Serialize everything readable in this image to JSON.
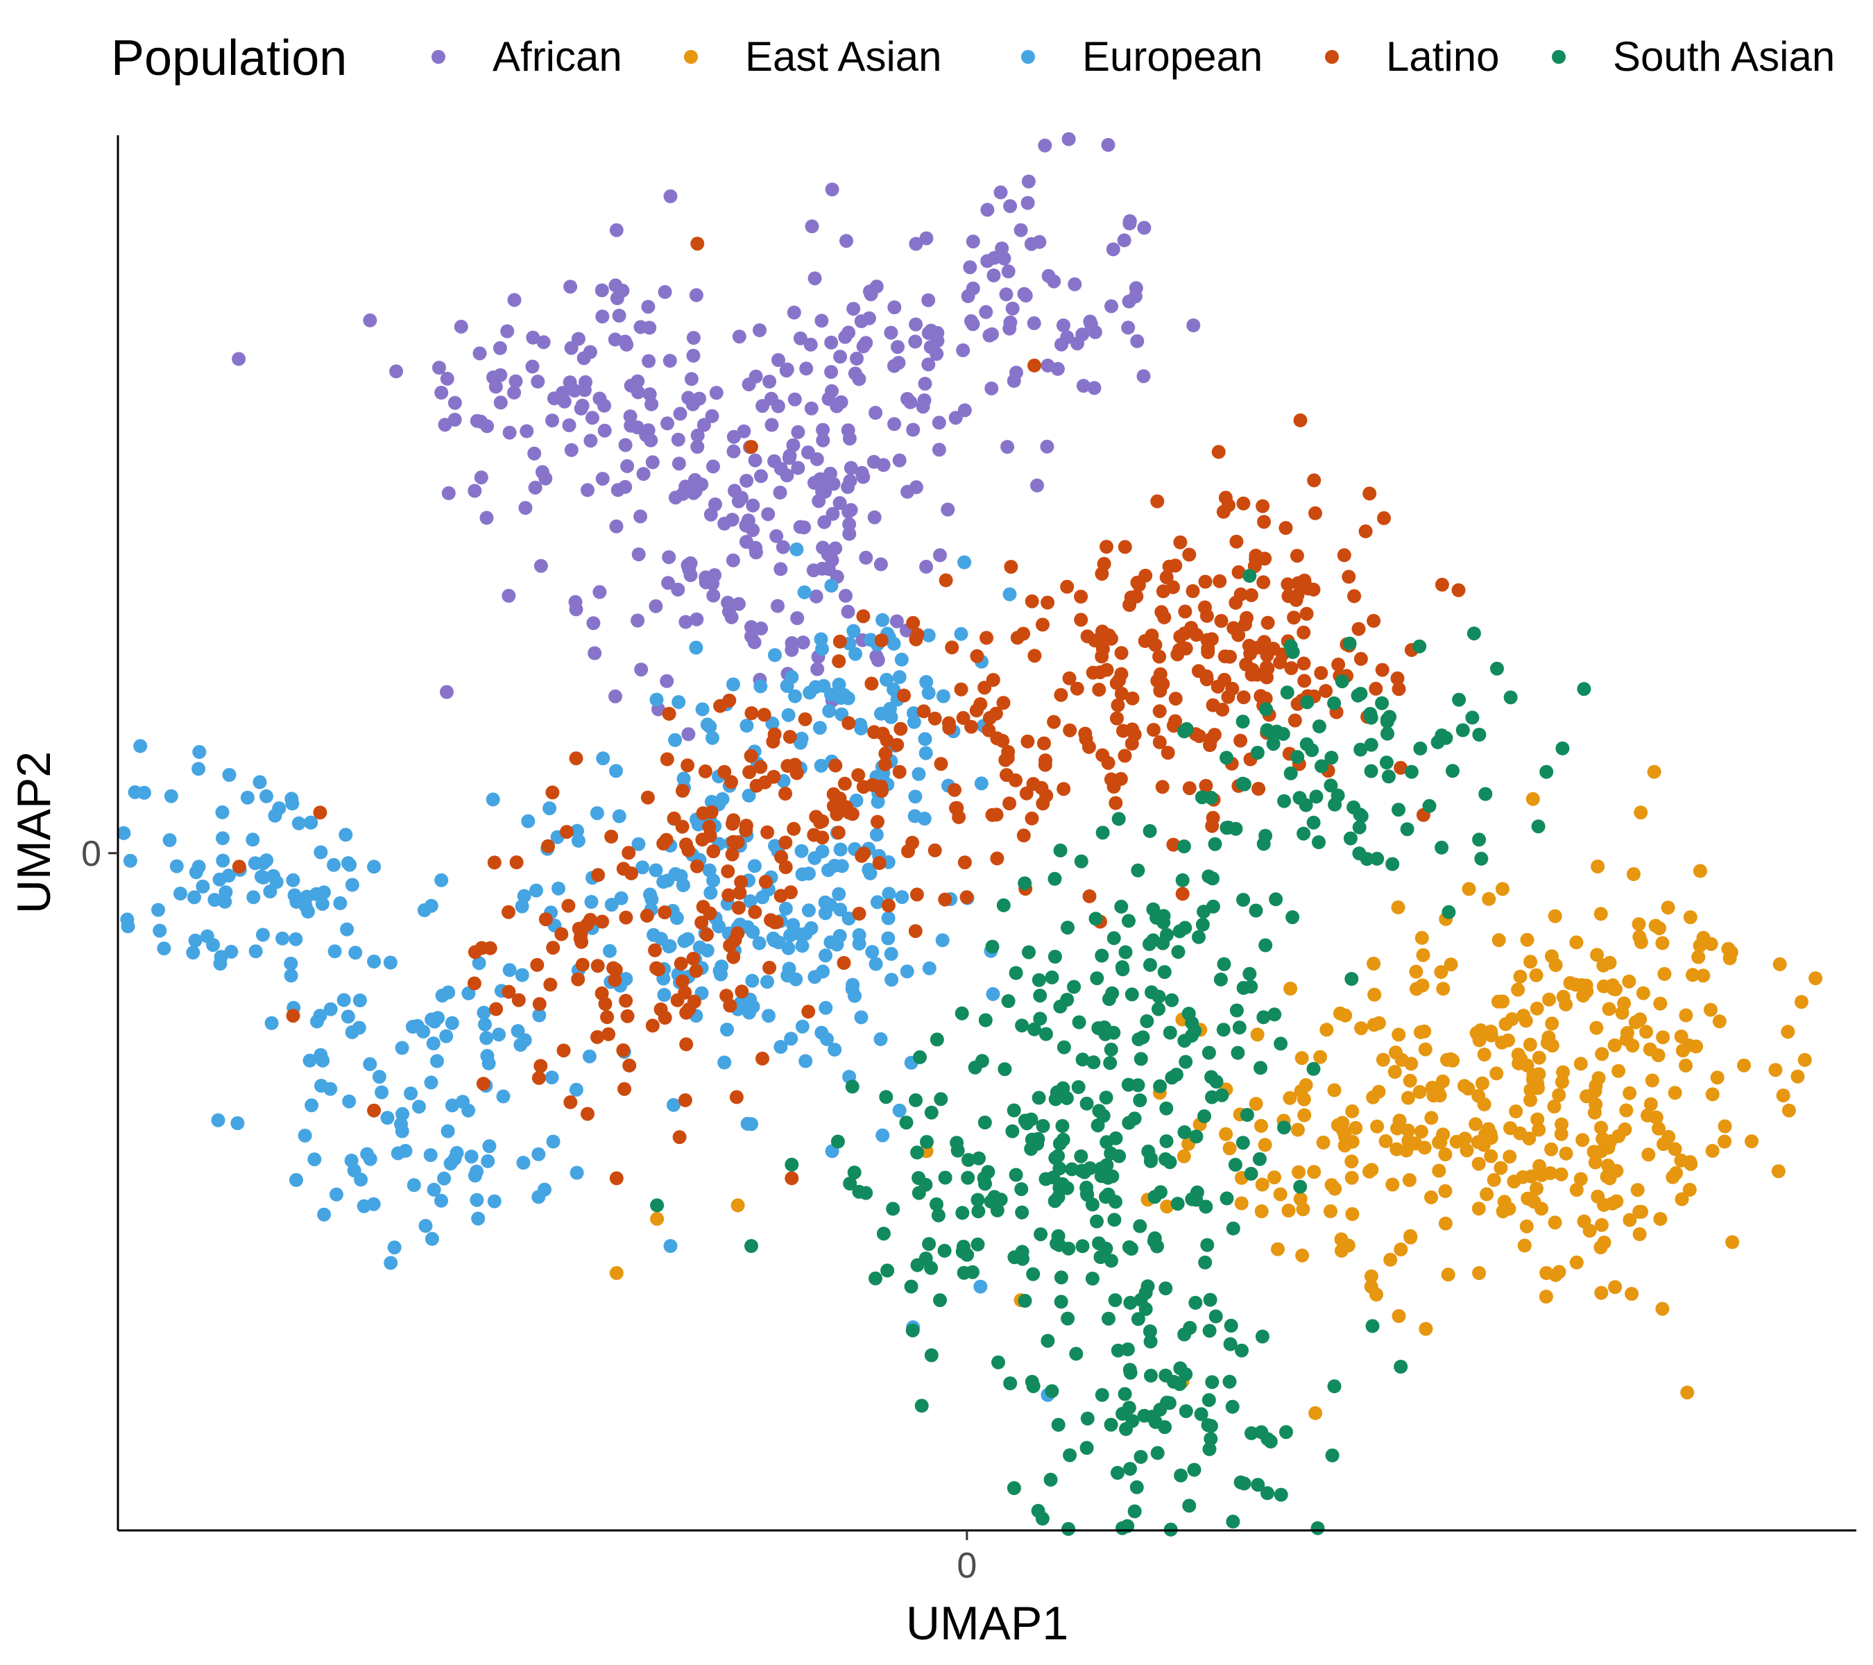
{
  "chart_data": {
    "type": "scatter",
    "title": "",
    "xlabel": "UMAP1",
    "ylabel": "UMAP2",
    "xlim": [
      -6.3,
      6.6
    ],
    "ylim": [
      -5.0,
      5.3
    ],
    "x_ticks": [
      {
        "value": 0,
        "label": "0"
      }
    ],
    "y_ticks": [
      {
        "value": 0,
        "label": "0"
      }
    ],
    "grid": false,
    "legend": {
      "title": "Population",
      "position": "top",
      "entries": [
        "African",
        "East Asian",
        "European",
        "Latino",
        "South Asian"
      ]
    },
    "series": [
      {
        "name": "African",
        "color": "#8774CA",
        "cluster_centers": [
          [
            -1.2,
            3.1
          ],
          [
            -2.9,
            3.4
          ],
          [
            0.2,
            4.0
          ],
          [
            -1.6,
            2.1
          ]
        ],
        "points": [
          [
            -2.6,
            4.6
          ],
          [
            -2.2,
            4.85
          ],
          [
            -1.0,
            4.9
          ],
          [
            0.4,
            4.6
          ],
          [
            -3.9,
            3.4
          ],
          [
            -3.8,
            3.2
          ],
          [
            -2.0,
            3.0
          ],
          [
            -1.4,
            3.3
          ],
          [
            -0.8,
            3.5
          ],
          [
            -0.5,
            2.9
          ],
          [
            -1.1,
            2.6
          ],
          [
            -1.9,
            2.5
          ],
          [
            -2.4,
            2.8
          ],
          [
            0.3,
            3.0
          ],
          [
            0.6,
            3.6
          ],
          [
            0.8,
            4.2
          ],
          [
            -0.2,
            2.2
          ],
          [
            -1.6,
            1.6
          ],
          [
            -3.4,
            1.9
          ],
          [
            -2.9,
            1.8
          ],
          [
            -0.9,
            1.9
          ],
          [
            -1.3,
            1.5
          ]
        ]
      },
      {
        "name": "East Asian",
        "color": "#E6960F",
        "cluster_centers": [
          [
            3.8,
            -1.6
          ],
          [
            5.0,
            -1.2
          ],
          [
            2.9,
            -2.1
          ],
          [
            4.5,
            -2.4
          ]
        ],
        "points": [
          [
            4.2,
            0.4
          ],
          [
            5.0,
            0.3
          ],
          [
            5.1,
            0.6
          ],
          [
            6.0,
            -1.6
          ],
          [
            6.1,
            -1.9
          ],
          [
            3.2,
            -0.4
          ],
          [
            2.4,
            -1.0
          ],
          [
            4.3,
            -3.1
          ],
          [
            3.8,
            -3.1
          ],
          [
            -2.6,
            -3.1
          ],
          [
            -2.3,
            -2.7
          ],
          [
            -1.7,
            -2.6
          ],
          [
            -0.3,
            -2.2
          ],
          [
            1.6,
            -3.9
          ],
          [
            0.4,
            -3.3
          ],
          [
            3.0,
            -3.2
          ]
        ]
      },
      {
        "name": "European",
        "color": "#45A4E2",
        "cluster_centers": [
          [
            -1.2,
            -0.7
          ],
          [
            -2.1,
            -0.3
          ],
          [
            -5.4,
            -0.3
          ],
          [
            -3.9,
            -1.9
          ],
          [
            -0.9,
            1.1
          ]
        ],
        "points": [
          [
            -5.7,
            -0.1
          ],
          [
            -5.3,
            0.1
          ],
          [
            -5.0,
            -0.2
          ],
          [
            -4.4,
            -0.1
          ],
          [
            -3.9,
            -0.2
          ],
          [
            -4.4,
            -0.8
          ],
          [
            -4.8,
            -1.2
          ],
          [
            -4.2,
            -2.0
          ],
          [
            -3.7,
            -1.9
          ],
          [
            -3.3,
            -0.9
          ],
          [
            -2.8,
            -1.5
          ],
          [
            -2.2,
            -2.9
          ],
          [
            -1.6,
            -2.0
          ],
          [
            -1.0,
            -2.2
          ],
          [
            -0.5,
            -1.9
          ],
          [
            -0.1,
            0.9
          ],
          [
            -0.5,
            1.3
          ],
          [
            -1.3,
            1.3
          ],
          [
            -2.7,
            0.7
          ],
          [
            0.6,
            -4.0
          ],
          [
            -0.4,
            -3.5
          ],
          [
            0.1,
            -3.2
          ]
        ]
      },
      {
        "name": "Latino",
        "color": "#CC4A0E",
        "cluster_centers": [
          [
            0.5,
            0.9
          ],
          [
            1.8,
            1.3
          ],
          [
            2.1,
            1.8
          ],
          [
            -1.3,
            0.3
          ],
          [
            -2.5,
            -0.8
          ]
        ],
        "points": [
          [
            2.2,
            2.0
          ],
          [
            2.5,
            1.4
          ],
          [
            2.8,
            2.2
          ],
          [
            3.3,
            1.5
          ],
          [
            2.0,
            2.3
          ],
          [
            1.0,
            1.6
          ],
          [
            0.1,
            1.1
          ],
          [
            -0.5,
            0.6
          ],
          [
            -1.8,
            0.6
          ],
          [
            -2.9,
            0.7
          ],
          [
            -3.6,
            -0.7
          ],
          [
            -4.4,
            -1.9
          ],
          [
            -5.4,
            -0.1
          ],
          [
            -4.8,
            0.3
          ],
          [
            -5.0,
            -1.2
          ],
          [
            -2.6,
            -2.4
          ],
          [
            -1.3,
            -2.4
          ],
          [
            -2.0,
            4.5
          ],
          [
            -1.6,
            3.0
          ],
          [
            -0.4,
            1.7
          ],
          [
            0.5,
            3.6
          ],
          [
            1.6,
            -0.3
          ]
        ]
      },
      {
        "name": "South Asian",
        "color": "#118A5E",
        "cluster_centers": [
          [
            0.9,
            -2.0
          ],
          [
            0.4,
            -2.7
          ],
          [
            2.8,
            0.6
          ],
          [
            1.5,
            -4.1
          ],
          [
            1.4,
            -1.0
          ]
        ],
        "points": [
          [
            3.0,
            0.8
          ],
          [
            3.3,
            0.6
          ],
          [
            3.0,
            1.0
          ],
          [
            2.7,
            0.5
          ],
          [
            1.6,
            -0.2
          ],
          [
            1.2,
            -0.5
          ],
          [
            0.5,
            -1.3
          ],
          [
            -0.6,
            -1.8
          ],
          [
            -0.8,
            -2.5
          ],
          [
            -1.3,
            -2.3
          ],
          [
            -2.3,
            -2.6
          ],
          [
            -1.6,
            -2.9
          ],
          [
            -0.2,
            -3.3
          ],
          [
            1.1,
            -3.3
          ],
          [
            1.4,
            -4.2
          ],
          [
            1.8,
            -4.4
          ],
          [
            4.3,
            0.6
          ],
          [
            3.8,
            0.1
          ],
          [
            0.6,
            -3.6
          ]
        ]
      }
    ]
  }
}
